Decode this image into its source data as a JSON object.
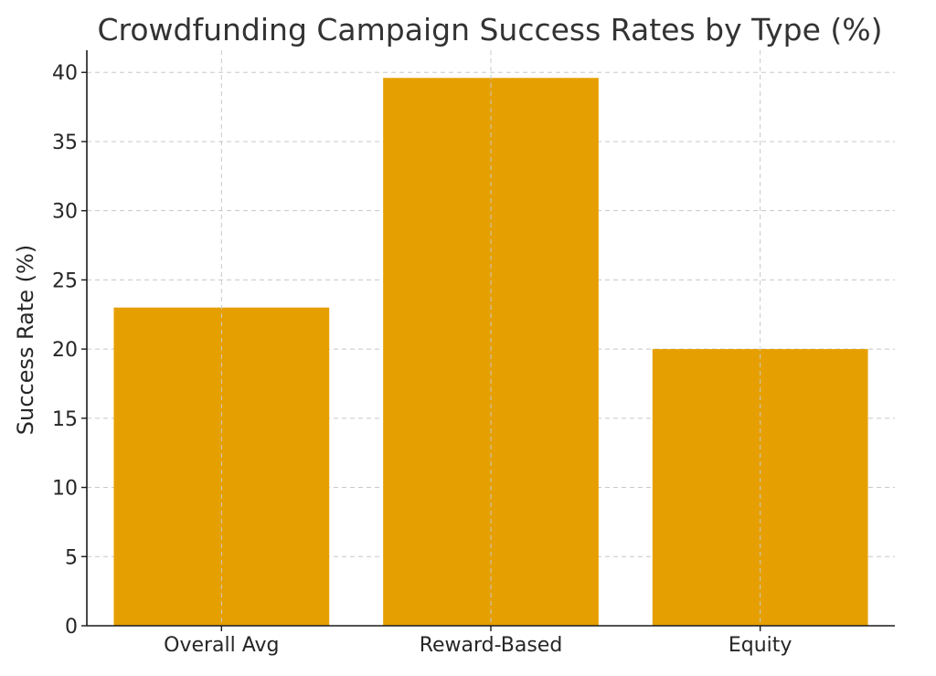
{
  "chart_data": {
    "type": "bar",
    "title": "Crowdfunding Campaign Success Rates by Type (%)",
    "xlabel": "",
    "ylabel": "Success Rate (%)",
    "categories": [
      "Overall Avg",
      "Reward-Based",
      "Equity"
    ],
    "values": [
      23,
      39.6,
      20
    ],
    "ylim": [
      0,
      41.6
    ],
    "yticks": [
      0,
      5,
      10,
      15,
      20,
      25,
      30,
      35,
      40
    ],
    "grid": true,
    "bar_color": "#E69F00"
  }
}
